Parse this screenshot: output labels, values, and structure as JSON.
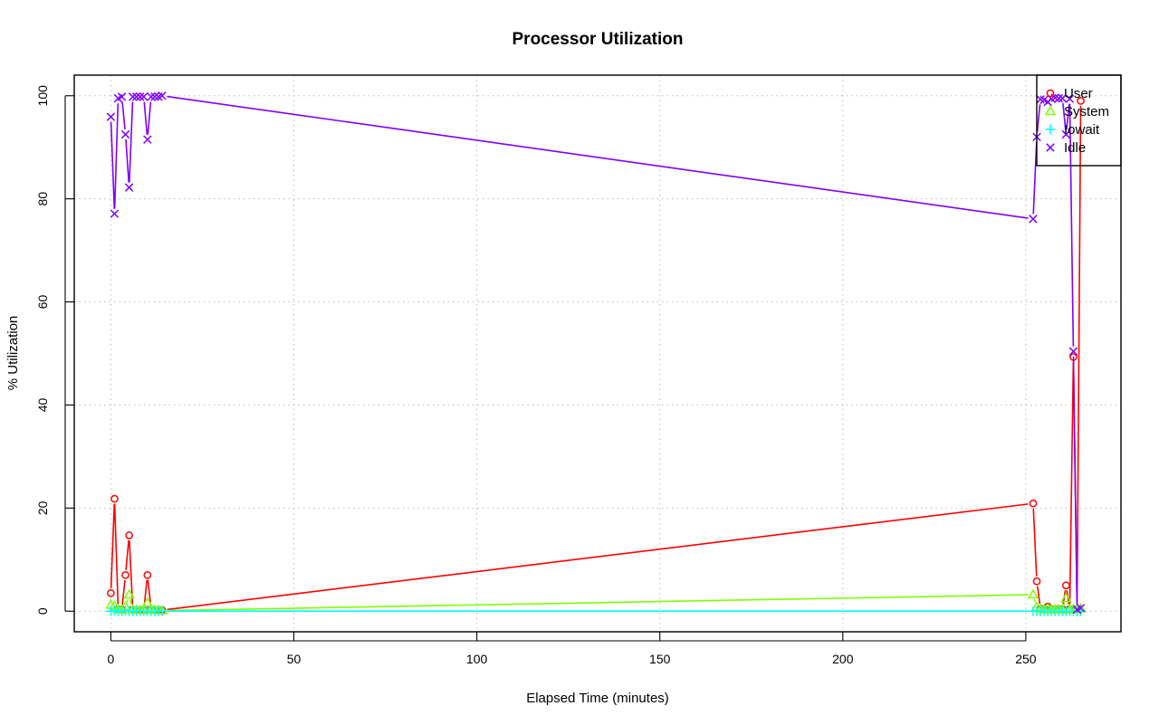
{
  "chart_data": {
    "type": "line",
    "title": "Processor Utilization",
    "xlabel": "Elapsed Time (minutes)",
    "ylabel": "% Utilization",
    "xlim": [
      -10,
      276
    ],
    "ylim": [
      -4,
      104
    ],
    "x_ticks": [
      0,
      50,
      100,
      150,
      200,
      250
    ],
    "y_ticks": [
      0,
      20,
      40,
      60,
      80,
      100
    ],
    "grid": true,
    "legend_position": "top-right",
    "series": [
      {
        "name": "User",
        "color": "#ff0000",
        "marker": "circle",
        "points": [
          [
            0,
            3.5
          ],
          [
            1,
            21.8
          ],
          [
            2,
            0.4
          ],
          [
            3,
            0.3
          ],
          [
            4,
            7.0
          ],
          [
            5,
            14.7
          ],
          [
            6,
            0.3
          ],
          [
            7,
            0.2
          ],
          [
            8,
            0.2
          ],
          [
            9,
            0.2
          ],
          [
            10,
            7.0
          ],
          [
            11,
            0.3
          ],
          [
            12,
            0.2
          ],
          [
            13,
            0.2
          ],
          [
            14,
            0.2
          ],
          [
            252,
            20.9
          ],
          [
            253,
            5.8
          ],
          [
            254,
            0.5
          ],
          [
            255,
            0.4
          ],
          [
            256,
            0.9
          ],
          [
            257,
            0.4
          ],
          [
            258,
            0.3
          ],
          [
            259,
            0.4
          ],
          [
            260,
            0.4
          ],
          [
            261,
            5.0
          ],
          [
            262,
            0.4
          ],
          [
            263,
            49.3
          ],
          [
            264,
            0.4
          ],
          [
            265,
            99.0
          ]
        ]
      },
      {
        "name": "System",
        "color": "#80ff00",
        "marker": "triangle",
        "points": [
          [
            0,
            1.2
          ],
          [
            1,
            1.0
          ],
          [
            2,
            0.3
          ],
          [
            3,
            0.3
          ],
          [
            4,
            0.9
          ],
          [
            5,
            3.2
          ],
          [
            6,
            0.3
          ],
          [
            7,
            0.2
          ],
          [
            8,
            0.2
          ],
          [
            9,
            0.2
          ],
          [
            10,
            1.6
          ],
          [
            11,
            0.3
          ],
          [
            12,
            0.2
          ],
          [
            13,
            0.2
          ],
          [
            14,
            0.1
          ],
          [
            252,
            3.2
          ],
          [
            253,
            0.8
          ],
          [
            254,
            0.4
          ],
          [
            255,
            0.3
          ],
          [
            256,
            0.5
          ],
          [
            257,
            0.3
          ],
          [
            258,
            0.3
          ],
          [
            259,
            0.3
          ],
          [
            260,
            0.3
          ],
          [
            261,
            2.5
          ],
          [
            262,
            0.3
          ],
          [
            263,
            0.4
          ],
          [
            264,
            0.3
          ],
          [
            265,
            0.5
          ]
        ]
      },
      {
        "name": "Iowait",
        "color": "#00ffff",
        "marker": "plus",
        "points": [
          [
            0,
            0.0
          ],
          [
            1,
            0.1
          ],
          [
            2,
            0.0
          ],
          [
            3,
            0.0
          ],
          [
            4,
            0.1
          ],
          [
            5,
            0.0
          ],
          [
            6,
            0.0
          ],
          [
            7,
            0.0
          ],
          [
            8,
            0.0
          ],
          [
            9,
            0.0
          ],
          [
            10,
            0.0
          ],
          [
            11,
            0.0
          ],
          [
            12,
            0.0
          ],
          [
            13,
            0.0
          ],
          [
            14,
            0.0
          ],
          [
            252,
            0.0
          ],
          [
            253,
            0.0
          ],
          [
            254,
            0.0
          ],
          [
            255,
            0.0
          ],
          [
            256,
            0.0
          ],
          [
            257,
            0.0
          ],
          [
            258,
            0.0
          ],
          [
            259,
            0.0
          ],
          [
            260,
            0.0
          ],
          [
            261,
            0.0
          ],
          [
            262,
            0.0
          ],
          [
            263,
            0.0
          ],
          [
            264,
            0.0
          ],
          [
            265,
            0.0
          ]
        ]
      },
      {
        "name": "Idle",
        "color": "#8000ff",
        "marker": "x",
        "points": [
          [
            0,
            95.9
          ],
          [
            1,
            77.1
          ],
          [
            2,
            99.5
          ],
          [
            3,
            99.8
          ],
          [
            4,
            92.5
          ],
          [
            5,
            82.2
          ],
          [
            6,
            99.8
          ],
          [
            7,
            99.8
          ],
          [
            8,
            99.8
          ],
          [
            9,
            99.8
          ],
          [
            10,
            91.5
          ],
          [
            11,
            99.8
          ],
          [
            12,
            99.8
          ],
          [
            13,
            99.8
          ],
          [
            14,
            100.0
          ],
          [
            252,
            76.1
          ],
          [
            253,
            92.0
          ],
          [
            254,
            99.3
          ],
          [
            255,
            99.2
          ],
          [
            256,
            98.8
          ],
          [
            257,
            99.4
          ],
          [
            258,
            99.6
          ],
          [
            259,
            99.5
          ],
          [
            260,
            99.5
          ],
          [
            261,
            92.5
          ],
          [
            262,
            99.4
          ],
          [
            263,
            50.4
          ],
          [
            264,
            0.3
          ],
          [
            265,
            0.6
          ]
        ]
      }
    ]
  }
}
